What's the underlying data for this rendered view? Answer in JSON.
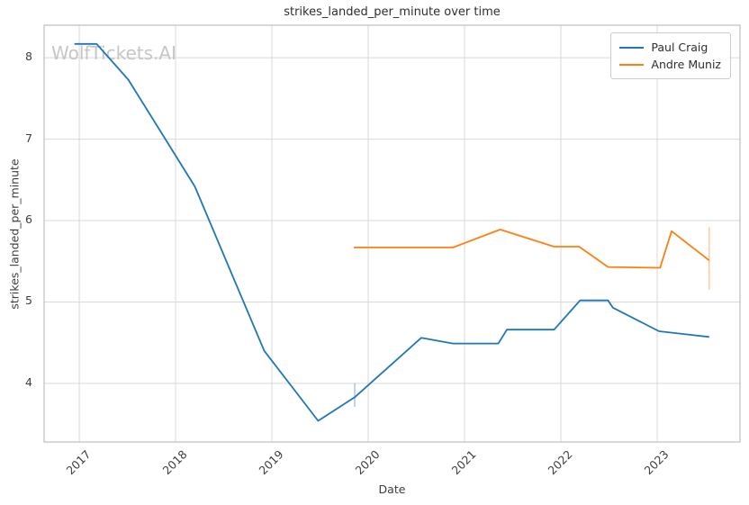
{
  "chart": {
    "title": "strikes_landed_per_minute over time",
    "xlabel": "Date",
    "ylabel": "strikes_landed_per_minute",
    "watermark": "WolfTickets.AI"
  },
  "chart_data": {
    "type": "line",
    "title": "strikes_landed_per_minute over time",
    "xlabel": "Date",
    "ylabel": "strikes_landed_per_minute",
    "grid": true,
    "legend_position": "upper right",
    "xlim": [
      2016.635,
      2023.86
    ],
    "ylim": [
      3.28,
      8.4
    ],
    "xticks": [
      2017,
      2018,
      2019,
      2020,
      2021,
      2022,
      2023
    ],
    "yticks": [
      4,
      5,
      6,
      7,
      8
    ],
    "series": [
      {
        "name": "Paul Craig",
        "color": "#1f77b4",
        "x": [
          2016.95,
          2017.18,
          2017.51,
          2018.2,
          2018.92,
          2019.48,
          2019.86,
          2020.55,
          2020.88,
          2021.35,
          2021.44,
          2021.93,
          2022.2,
          2022.49,
          2022.54,
          2023.02,
          2023.54
        ],
        "y": [
          8.17,
          8.17,
          7.73,
          6.42,
          4.4,
          3.54,
          3.83,
          4.56,
          4.49,
          4.49,
          4.66,
          4.66,
          5.02,
          5.02,
          4.93,
          4.64,
          4.57
        ],
        "error_bars": [
          {
            "x": 2019.86,
            "y_low": 3.71,
            "y_high": 4.0
          }
        ]
      },
      {
        "name": "Andre Muniz",
        "color": "#ff7f0e",
        "x": [
          2019.85,
          2020.88,
          2021.37,
          2021.93,
          2022.19,
          2022.49,
          2023.03,
          2023.15,
          2023.54
        ],
        "y": [
          5.67,
          5.67,
          5.89,
          5.68,
          5.68,
          5.43,
          5.42,
          5.87,
          5.51
        ],
        "error_bars": [
          {
            "x": 2023.54,
            "y_low": 5.15,
            "y_high": 5.92
          }
        ]
      }
    ]
  },
  "colors": {
    "grid": "#d9d9d9",
    "spine": "#bfbfbf",
    "text": "#3d3d3d",
    "watermark": "#c6c6c6",
    "background": "#ffffff"
  }
}
